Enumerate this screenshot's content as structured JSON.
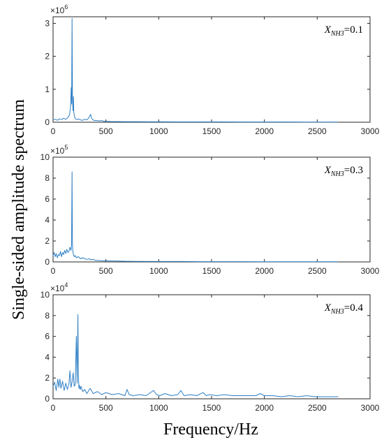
{
  "chart_data": [
    {
      "type": "line",
      "annotation": {
        "symbol": "X",
        "subscript": "NH3",
        "value": "=0.1"
      },
      "exponent_label": {
        "base": "×10",
        "power": "6"
      },
      "xlim": [
        0,
        3000
      ],
      "ylim": [
        0,
        3.2
      ],
      "xticks": [
        0,
        500,
        1000,
        1500,
        2000,
        2500,
        3000
      ],
      "yticks": [
        0,
        1,
        2,
        3
      ],
      "series": [
        {
          "color": "#2e7fc4",
          "x": [
            0,
            20,
            40,
            60,
            80,
            100,
            120,
            140,
            155,
            165,
            172,
            176,
            180,
            184,
            188,
            192,
            196,
            200,
            205,
            210,
            215,
            220,
            230,
            240,
            260,
            280,
            300,
            320,
            340,
            355,
            365,
            375,
            385,
            400,
            420,
            440,
            460,
            480,
            500,
            550,
            600,
            700,
            800,
            900,
            1000,
            1200,
            1400,
            1600,
            1800,
            2000,
            2200,
            2400,
            2600,
            2700
          ],
          "y": [
            0.07,
            0.09,
            0.06,
            0.1,
            0.08,
            0.12,
            0.09,
            0.14,
            0.22,
            0.45,
            1.05,
            0.55,
            3.15,
            0.8,
            0.35,
            0.78,
            0.3,
            0.22,
            0.15,
            0.12,
            0.1,
            0.09,
            0.08,
            0.1,
            0.07,
            0.06,
            0.09,
            0.07,
            0.14,
            0.24,
            0.12,
            0.08,
            0.06,
            0.05,
            0.05,
            0.04,
            0.05,
            0.03,
            0.03,
            0.02,
            0.02,
            0.015,
            0.015,
            0.012,
            0.012,
            0.01,
            0.01,
            0.01,
            0.008,
            0.008,
            0.008,
            0.007,
            0.007,
            0.006
          ]
        }
      ]
    },
    {
      "type": "line",
      "annotation": {
        "symbol": "X",
        "subscript": "NH3",
        "value": "=0.3"
      },
      "exponent_label": {
        "base": "×10",
        "power": "5"
      },
      "xlim": [
        0,
        3000
      ],
      "ylim": [
        0,
        10
      ],
      "xticks": [
        0,
        500,
        1000,
        1500,
        2000,
        2500,
        3000
      ],
      "yticks": [
        0,
        2,
        4,
        6,
        8,
        10
      ],
      "series": [
        {
          "color": "#2e7fc4",
          "x": [
            0,
            10,
            20,
            30,
            40,
            50,
            60,
            70,
            80,
            90,
            100,
            110,
            120,
            130,
            140,
            150,
            160,
            170,
            175,
            180,
            183,
            186,
            190,
            195,
            200,
            210,
            220,
            240,
            260,
            280,
            300,
            320,
            340,
            360,
            380,
            400,
            450,
            500,
            600,
            700,
            800,
            1000,
            1200,
            1400,
            1600,
            1800,
            2000,
            2200,
            2400,
            2600,
            2700
          ],
          "y": [
            0.6,
            0.9,
            0.5,
            0.8,
            0.4,
            0.7,
            0.6,
            1.0,
            0.5,
            0.9,
            0.7,
            1.1,
            0.8,
            1.2,
            0.9,
            1.0,
            1.4,
            1.1,
            1.6,
            8.6,
            2.0,
            1.2,
            0.8,
            0.7,
            0.5,
            0.6,
            0.4,
            0.5,
            0.3,
            0.4,
            0.3,
            0.25,
            0.3,
            0.2,
            0.25,
            0.15,
            0.12,
            0.1,
            0.08,
            0.06,
            0.05,
            0.04,
            0.04,
            0.03,
            0.03,
            0.03,
            0.02,
            0.02,
            0.02,
            0.02,
            0.02
          ]
        }
      ]
    },
    {
      "type": "line",
      "annotation": {
        "symbol": "X",
        "subscript": "NH3",
        "value": "=0.4"
      },
      "exponent_label": {
        "base": "×10",
        "power": "4"
      },
      "xlim": [
        0,
        3000
      ],
      "ylim": [
        0,
        10
      ],
      "xticks": [
        0,
        500,
        1000,
        1500,
        2000,
        2500,
        3000
      ],
      "yticks": [
        0,
        2,
        4,
        6,
        8,
        10
      ],
      "series": [
        {
          "color": "#2e7fc4",
          "x": [
            0,
            15,
            30,
            45,
            55,
            65,
            75,
            90,
            105,
            120,
            135,
            150,
            160,
            170,
            180,
            190,
            200,
            210,
            220,
            228,
            235,
            240,
            245,
            250,
            258,
            265,
            280,
            300,
            320,
            350,
            380,
            420,
            460,
            500,
            560,
            620,
            680,
            700,
            720,
            760,
            820,
            880,
            950,
            980,
            1010,
            1060,
            1120,
            1180,
            1210,
            1240,
            1300,
            1360,
            1420,
            1450,
            1480,
            1550,
            1620,
            1700,
            1780,
            1850,
            1920,
            1960,
            2000,
            2080,
            2160,
            2240,
            2320,
            2400,
            2480,
            2560,
            2640,
            2700
          ],
          "y": [
            1.2,
            1.6,
            0.8,
            1.9,
            1.1,
            1.9,
            1.0,
            1.7,
            0.8,
            1.5,
            0.9,
            1.4,
            2.7,
            1.1,
            1.6,
            2.5,
            1.2,
            1.4,
            6.0,
            1.5,
            8.1,
            2.2,
            1.0,
            1.3,
            0.9,
            1.2,
            0.7,
            0.9,
            0.5,
            1.0,
            0.5,
            0.7,
            0.4,
            0.6,
            0.4,
            0.5,
            0.3,
            0.9,
            0.4,
            0.3,
            0.4,
            0.3,
            0.8,
            0.4,
            0.3,
            0.5,
            0.3,
            0.4,
            0.8,
            0.3,
            0.4,
            0.3,
            0.6,
            0.3,
            0.4,
            0.3,
            0.4,
            0.3,
            0.3,
            0.3,
            0.3,
            0.5,
            0.3,
            0.3,
            0.2,
            0.3,
            0.2,
            0.3,
            0.2,
            0.2,
            0.2,
            0.2
          ]
        }
      ]
    }
  ],
  "axes_titles": {
    "ylabel": "Single-sided amplitude spectrum",
    "xlabel": "Frequency/Hz"
  }
}
